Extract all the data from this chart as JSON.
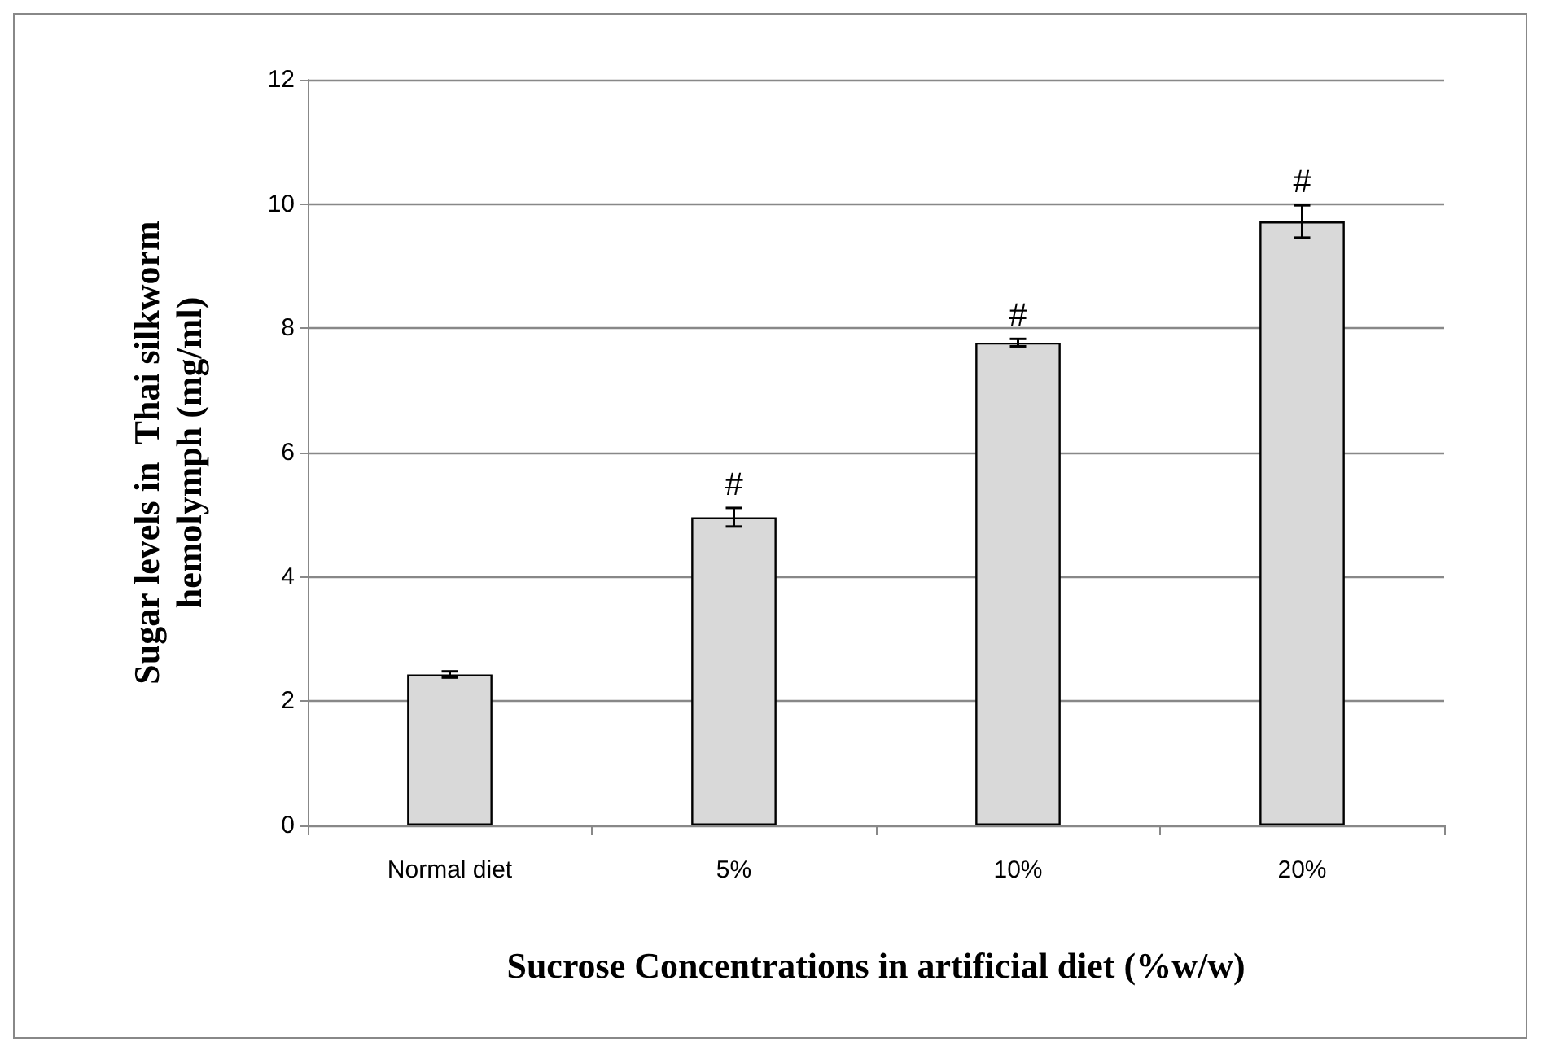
{
  "chart_data": {
    "type": "bar",
    "xlabel": "Sucrose Concentrations in artificial diet (%w/w)",
    "ylabel": "Sugar levels in  Thai silkworm\nhemolymph (mg/ml)",
    "categories": [
      "Normal diet",
      "5%",
      "10%",
      "20%"
    ],
    "values": [
      2.43,
      4.96,
      7.77,
      9.72
    ],
    "errors": [
      0.05,
      0.15,
      0.06,
      0.26
    ],
    "color": "#d9d9d9",
    "value_labels": [
      null,
      "#",
      "#",
      "#"
    ],
    "ylim": [
      0,
      12
    ],
    "yticks": [
      0,
      2,
      4,
      6,
      8,
      10,
      12
    ],
    "grid": "y"
  }
}
